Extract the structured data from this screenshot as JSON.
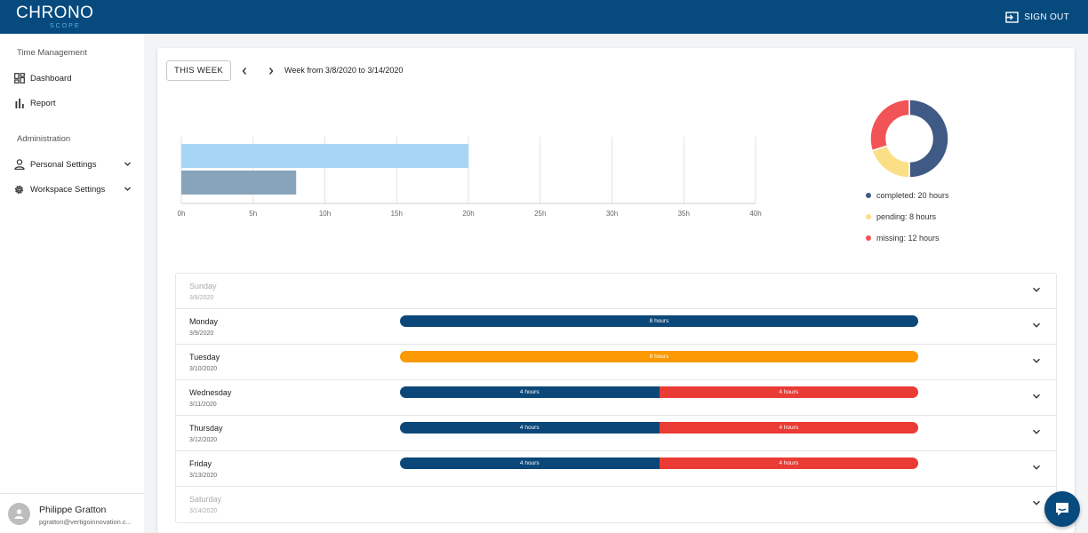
{
  "app": {
    "logo_text": "CHRONO",
    "logo_sub": "SCOPE",
    "signout_label": "SIGN OUT"
  },
  "sidebar": {
    "sections": [
      {
        "title": "Time Management"
      },
      {
        "title": "Administration"
      }
    ],
    "items": [
      {
        "label": "Dashboard",
        "icon": "dashboard-icon"
      },
      {
        "label": "Report",
        "icon": "bar-chart-icon"
      },
      {
        "label": "Personal Settings",
        "icon": "person-icon"
      },
      {
        "label": "Workspace Settings",
        "icon": "gear-icon"
      }
    ],
    "user": {
      "name": "Philippe Gratton",
      "email": "pgratton@vertigoinnovation.c..."
    }
  },
  "toolbar": {
    "this_week_label": "THIS WEEK",
    "range_label": "Week from 3/8/2020 to 3/14/2020"
  },
  "chart_data": [
    {
      "type": "bar",
      "orientation": "horizontal",
      "series": [
        {
          "name": "",
          "values": [
            20
          ],
          "color": "#a7d5f5"
        },
        {
          "name": "",
          "values": [
            8
          ],
          "color": "#87a4ba"
        }
      ],
      "xticks": [
        "0h",
        "5h",
        "10h",
        "15h",
        "20h",
        "25h",
        "30h",
        "35h",
        "40h"
      ],
      "xlim": [
        0,
        40
      ],
      "grid": true
    },
    {
      "type": "pie",
      "donut": true,
      "slices": [
        {
          "label": "completed: 20 hours",
          "value": 20,
          "color": "#3f5a85"
        },
        {
          "label": "pending: 8 hours",
          "value": 8,
          "color": "#fbdf86"
        },
        {
          "label": "missing: 12 hours",
          "value": 12,
          "color": "#f25357"
        }
      ],
      "legend": "bottom"
    }
  ],
  "colors": {
    "primary": "#064a7e",
    "completed": "#0b4879",
    "pending": "#fb9a02",
    "missing": "#eb3b35"
  },
  "days": [
    {
      "name": "Sunday",
      "date": "3/8/2020",
      "dim": true,
      "segments": []
    },
    {
      "name": "Monday",
      "date": "3/9/2020",
      "dim": false,
      "segments": [
        {
          "label": "8 hours",
          "hours": 8,
          "color": "#0b4879"
        }
      ]
    },
    {
      "name": "Tuesday",
      "date": "3/10/2020",
      "dim": false,
      "segments": [
        {
          "label": "8 hours",
          "hours": 8,
          "color": "#fb9a02"
        }
      ]
    },
    {
      "name": "Wednesday",
      "date": "3/11/2020",
      "dim": false,
      "segments": [
        {
          "label": "4 hours",
          "hours": 4,
          "color": "#0b4879"
        },
        {
          "label": "4 hours",
          "hours": 4,
          "color": "#eb3b35"
        }
      ]
    },
    {
      "name": "Thursday",
      "date": "3/12/2020",
      "dim": false,
      "segments": [
        {
          "label": "4 hours",
          "hours": 4,
          "color": "#0b4879"
        },
        {
          "label": "4 hours",
          "hours": 4,
          "color": "#eb3b35"
        }
      ]
    },
    {
      "name": "Friday",
      "date": "3/13/2020",
      "dim": false,
      "segments": [
        {
          "label": "4 hours",
          "hours": 4,
          "color": "#0b4879"
        },
        {
          "label": "4 hours",
          "hours": 4,
          "color": "#eb3b35"
        }
      ]
    },
    {
      "name": "Saturday",
      "date": "3/14/2020",
      "dim": true,
      "segments": []
    }
  ]
}
